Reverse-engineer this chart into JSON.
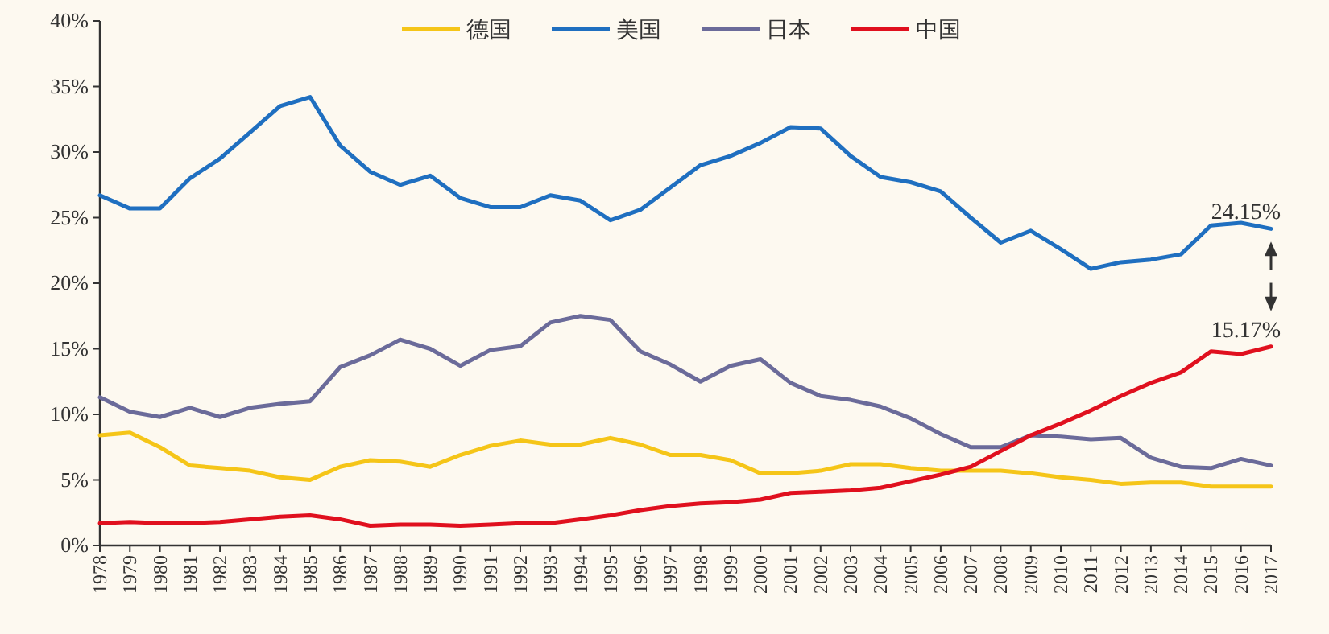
{
  "chart_data": {
    "type": "line",
    "categories": [
      "1978",
      "1979",
      "1980",
      "1981",
      "1982",
      "1983",
      "1984",
      "1985",
      "1986",
      "1987",
      "1988",
      "1989",
      "1990",
      "1991",
      "1992",
      "1993",
      "1994",
      "1995",
      "1996",
      "1997",
      "1998",
      "1999",
      "2000",
      "2001",
      "2002",
      "2003",
      "2004",
      "2005",
      "2006",
      "2007",
      "2008",
      "2009",
      "2010",
      "2011",
      "2012",
      "2013",
      "2014",
      "2015",
      "2016",
      "2017"
    ],
    "series": [
      {
        "name": "德国",
        "color": "#f5c518",
        "values": [
          8.4,
          8.6,
          7.5,
          6.1,
          5.9,
          5.7,
          5.2,
          5.0,
          6.0,
          6.5,
          6.4,
          6.0,
          6.9,
          7.6,
          8.0,
          7.7,
          7.7,
          8.2,
          7.7,
          6.9,
          6.9,
          6.5,
          5.5,
          5.5,
          5.7,
          6.2,
          6.2,
          5.9,
          5.7,
          5.7,
          5.7,
          5.5,
          5.2,
          5.0,
          4.7,
          4.8,
          4.8,
          4.5,
          4.5,
          4.5
        ]
      },
      {
        "name": "美国",
        "color": "#1f6fc0",
        "values": [
          26.7,
          25.7,
          25.7,
          28.0,
          29.5,
          31.5,
          33.5,
          34.2,
          30.5,
          28.5,
          27.5,
          28.2,
          26.5,
          25.8,
          25.8,
          26.7,
          26.3,
          24.8,
          25.6,
          27.3,
          29.0,
          29.7,
          30.7,
          31.9,
          31.8,
          29.7,
          28.1,
          27.7,
          27.0,
          25.0,
          23.1,
          24.0,
          22.6,
          21.1,
          21.6,
          21.8,
          22.2,
          24.4,
          24.6,
          24.15
        ]
      },
      {
        "name": "日本",
        "color": "#6b6b9a",
        "values": [
          11.3,
          10.2,
          9.8,
          10.5,
          9.8,
          10.5,
          10.8,
          11.0,
          13.6,
          14.5,
          15.7,
          15.0,
          13.7,
          14.9,
          15.2,
          17.0,
          17.5,
          17.2,
          14.8,
          13.8,
          12.5,
          13.7,
          14.2,
          12.4,
          11.4,
          11.1,
          10.6,
          9.7,
          8.5,
          7.5,
          7.5,
          8.4,
          8.3,
          8.1,
          8.2,
          6.7,
          6.0,
          5.9,
          6.6,
          6.1
        ]
      },
      {
        "name": "中国",
        "color": "#e0101e",
        "values": [
          1.7,
          1.8,
          1.7,
          1.7,
          1.8,
          2.0,
          2.2,
          2.3,
          2.0,
          1.5,
          1.6,
          1.6,
          1.5,
          1.6,
          1.7,
          1.7,
          2.0,
          2.3,
          2.7,
          3.0,
          3.2,
          3.3,
          3.5,
          4.0,
          4.1,
          4.2,
          4.4,
          4.9,
          5.4,
          6.0,
          7.2,
          8.4,
          9.3,
          10.3,
          11.4,
          12.4,
          13.2,
          14.8,
          14.6,
          15.17
        ]
      }
    ],
    "ylim": [
      0,
      40
    ],
    "yticks": [
      {
        "value": 0,
        "label": "0%"
      },
      {
        "value": 5,
        "label": "5%"
      },
      {
        "value": 10,
        "label": "10%"
      },
      {
        "value": 15,
        "label": "15%"
      },
      {
        "value": 20,
        "label": "20%"
      },
      {
        "value": 25,
        "label": "25%"
      },
      {
        "value": 30,
        "label": "30%"
      },
      {
        "value": 35,
        "label": "35%"
      },
      {
        "value": 40,
        "label": "40%"
      }
    ],
    "annotations": [
      {
        "text": "24.15%",
        "x": "2017",
        "y": 24.15
      },
      {
        "text": "15.17%",
        "x": "2017",
        "y": 15.17
      }
    ],
    "grid": false,
    "legend": "top",
    "marker": "none",
    "line_style": "solid"
  }
}
